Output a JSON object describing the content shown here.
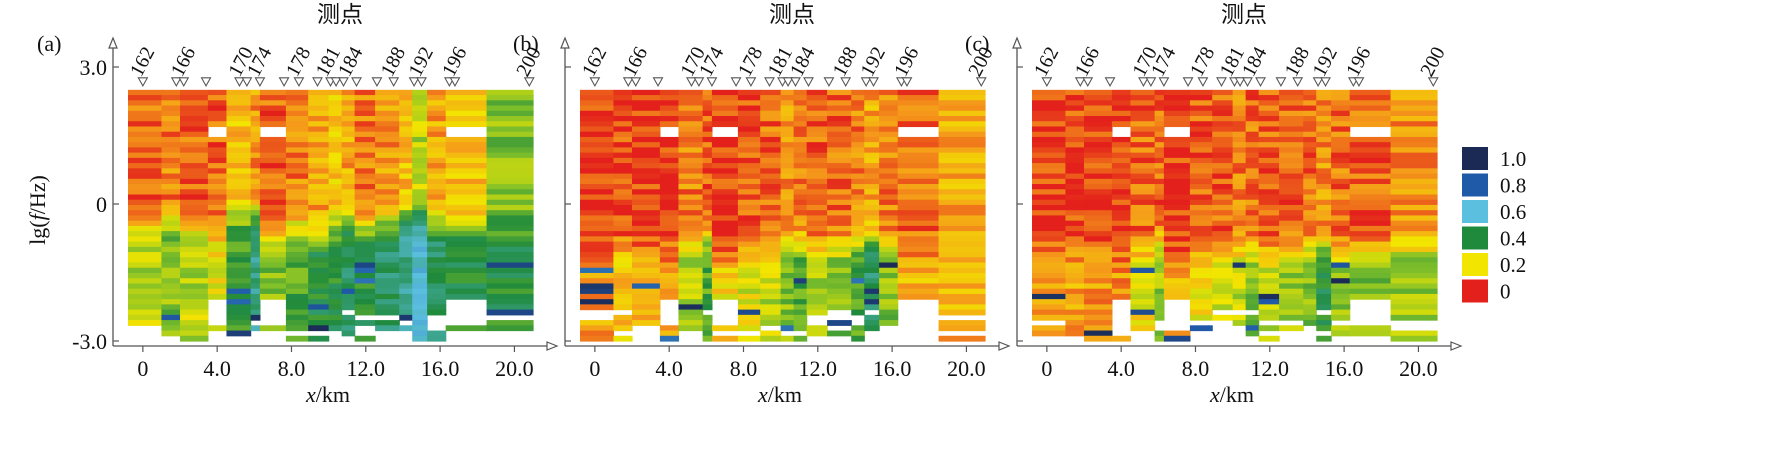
{
  "figure": {
    "ylabel": "lg(f/Hz)",
    "xlabel": "x/km",
    "top_label": "测点"
  },
  "colorbar": {
    "labels": [
      "1.0",
      "0.8",
      "0.6",
      "0.4",
      "0.2",
      "0"
    ],
    "colors": [
      "#1b2a55",
      "#1f5aa8",
      "#5bbfe0",
      "#1f8a3c",
      "#f2e600",
      "#e3201b"
    ],
    "scale": [
      {
        "v": 0.0,
        "c": "#e3201b"
      },
      {
        "v": 0.1,
        "c": "#f59a1a"
      },
      {
        "v": 0.2,
        "c": "#f2e600"
      },
      {
        "v": 0.3,
        "c": "#7fbf2a"
      },
      {
        "v": 0.4,
        "c": "#1f8a3c"
      },
      {
        "v": 0.6,
        "c": "#5bbfe0"
      },
      {
        "v": 0.8,
        "c": "#1f5aa8"
      },
      {
        "v": 1.0,
        "c": "#1b2a55"
      }
    ]
  },
  "chart_data": [
    {
      "panel": "(a)",
      "type": "heatmap",
      "xlabel": "x/km",
      "ylabel": "lg(f/Hz)",
      "top_label": "测点",
      "xlim": [
        -0.8,
        21.0
      ],
      "ylim": [
        -3.0,
        3.0
      ],
      "xticks": [
        0,
        4,
        8,
        12,
        16,
        20
      ],
      "xtick_labels": [
        "0",
        "4.0",
        "8.0",
        "12.0",
        "16.0",
        "20.0"
      ],
      "yticks": [
        3,
        0,
        -3
      ],
      "ytick_labels": [
        "3.0",
        "0",
        "-3.0"
      ],
      "station_labels": [
        "162",
        "166",
        "170",
        "174",
        "178",
        "181",
        "184",
        "188",
        "192",
        "196",
        "200"
      ],
      "station_x": [
        0,
        2.2,
        5.3,
        6.3,
        8.4,
        10.0,
        11.2,
        13.5,
        15.0,
        16.8,
        20.8
      ],
      "marker_x": [
        0,
        1.8,
        2.2,
        3.4,
        5.2,
        5.6,
        6.3,
        7.6,
        8.4,
        9.4,
        10.1,
        10.4,
        10.8,
        11.5,
        12.6,
        13.5,
        14.6,
        15.0,
        16.5,
        16.8,
        20.8
      ],
      "data_top_lg": 2.5,
      "profile": {
        "bounds": [
          -0.8,
          1.0,
          2.0,
          3.5,
          4.5,
          5.8,
          6.3,
          7.7,
          8.9,
          10.0,
          10.7,
          11.4,
          12.5,
          13.8,
          14.5,
          15.3,
          16.3,
          18.5,
          21.0
        ],
        "shallow": [
          0.05,
          0.08,
          0.05,
          0.05,
          0.15,
          0.1,
          0.05,
          0.08,
          0.12,
          0.15,
          0.12,
          0.08,
          0.1,
          0.15,
          0.25,
          0.12,
          0.15,
          0.3
        ],
        "deep": [
          0.25,
          0.3,
          0.25,
          0.2,
          0.35,
          0.5,
          0.3,
          0.35,
          0.4,
          0.4,
          0.45,
          0.4,
          0.45,
          0.5,
          0.6,
          0.45,
          0.4,
          0.4
        ],
        "transition": [
          -0.5,
          -0.3,
          -0.4,
          -0.6,
          -0.2,
          -0.2,
          -0.8,
          -0.5,
          -0.7,
          -0.5,
          -0.4,
          -0.5,
          -0.4,
          -0.3,
          -0.3,
          -0.4,
          -0.5,
          -0.4
        ],
        "gap_bands": [
          [
            -2.6,
            -2.1
          ],
          [
            1.5,
            1.75
          ]
        ],
        "gap_cols": [
          3,
          6,
          16
        ]
      }
    },
    {
      "panel": "(b)",
      "type": "heatmap",
      "xlabel": "x/km",
      "ylabel": "",
      "top_label": "测点",
      "xlim": [
        -0.8,
        21.0
      ],
      "ylim": [
        -3.0,
        3.0
      ],
      "xticks": [
        0,
        4,
        8,
        12,
        16,
        20
      ],
      "xtick_labels": [
        "0",
        "4.0",
        "8.0",
        "12.0",
        "16.0",
        "20.0"
      ],
      "yticks": [
        3,
        0,
        -3
      ],
      "ytick_labels": [
        "",
        "",
        ""
      ],
      "station_labels": [
        "162",
        "166",
        "170",
        "174",
        "178",
        "181",
        "184",
        "188",
        "192",
        "196",
        "200"
      ],
      "station_x": [
        0,
        2.2,
        5.3,
        6.3,
        8.4,
        10.0,
        11.2,
        13.5,
        15.0,
        16.8,
        20.8
      ],
      "marker_x": [
        0,
        1.8,
        2.2,
        3.4,
        5.2,
        5.6,
        6.3,
        7.6,
        8.4,
        9.4,
        10.1,
        10.4,
        10.8,
        11.5,
        12.6,
        13.5,
        14.6,
        15.0,
        16.5,
        16.8,
        20.8
      ],
      "data_top_lg": 2.5,
      "profile": {
        "bounds": [
          -0.8,
          1.0,
          2.0,
          3.5,
          4.5,
          5.8,
          6.3,
          7.7,
          8.9,
          10.0,
          10.7,
          11.4,
          12.5,
          13.8,
          14.5,
          15.3,
          16.3,
          18.5,
          21.0
        ],
        "shallow": [
          0.02,
          0.03,
          0.02,
          0.02,
          0.08,
          0.05,
          0.02,
          0.04,
          0.06,
          0.1,
          0.08,
          0.05,
          0.06,
          0.08,
          0.12,
          0.08,
          0.06,
          0.12
        ],
        "deep": [
          0.12,
          0.15,
          0.12,
          0.1,
          0.25,
          0.35,
          0.18,
          0.22,
          0.25,
          0.3,
          0.35,
          0.28,
          0.3,
          0.35,
          0.45,
          0.3,
          0.15,
          0.12
        ],
        "transition": [
          -1.0,
          -0.9,
          -0.9,
          -1.0,
          -0.8,
          -0.7,
          -1.2,
          -1.0,
          -1.0,
          -0.9,
          -0.9,
          -1.0,
          -0.9,
          -0.8,
          -0.8,
          -0.9,
          -1.2,
          -1.0
        ],
        "gap_bands": [
          [
            -2.6,
            -2.1
          ],
          [
            1.5,
            1.75
          ]
        ],
        "gap_cols": [
          3,
          6,
          16
        ]
      }
    },
    {
      "panel": "(c)",
      "type": "heatmap",
      "xlabel": "x/km",
      "ylabel": "",
      "top_label": "测点",
      "xlim": [
        -0.8,
        21.0
      ],
      "ylim": [
        -3.0,
        3.0
      ],
      "xticks": [
        0,
        4,
        8,
        12,
        16,
        20
      ],
      "xtick_labels": [
        "0",
        "4.0",
        "8.0",
        "12.0",
        "16.0",
        "20.0"
      ],
      "yticks": [
        3,
        0,
        -3
      ],
      "ytick_labels": [
        "",
        "",
        ""
      ],
      "station_labels": [
        "162",
        "166",
        "170",
        "174",
        "178",
        "181",
        "184",
        "188",
        "192",
        "196",
        "200"
      ],
      "station_x": [
        0,
        2.2,
        5.3,
        6.3,
        8.4,
        10.0,
        11.2,
        13.5,
        15.0,
        16.8,
        20.8
      ],
      "marker_x": [
        0,
        1.8,
        2.2,
        3.4,
        5.2,
        5.6,
        6.3,
        7.6,
        8.4,
        9.4,
        10.1,
        10.4,
        10.8,
        11.5,
        12.6,
        13.5,
        14.6,
        15.0,
        16.5,
        16.8,
        20.8
      ],
      "data_top_lg": 2.5,
      "profile": {
        "bounds": [
          -0.8,
          1.0,
          2.0,
          3.5,
          4.5,
          5.8,
          6.3,
          7.7,
          8.9,
          10.0,
          10.7,
          11.4,
          12.5,
          13.8,
          14.5,
          15.3,
          16.3,
          18.5,
          21.0
        ],
        "shallow": [
          0.02,
          0.03,
          0.02,
          0.02,
          0.06,
          0.05,
          0.02,
          0.04,
          0.05,
          0.08,
          0.06,
          0.05,
          0.05,
          0.06,
          0.1,
          0.06,
          0.05,
          0.1
        ],
        "deep": [
          0.1,
          0.12,
          0.1,
          0.1,
          0.2,
          0.28,
          0.15,
          0.2,
          0.22,
          0.25,
          0.3,
          0.25,
          0.28,
          0.3,
          0.4,
          0.28,
          0.3,
          0.28
        ],
        "transition": [
          -1.1,
          -1.0,
          -1.0,
          -1.1,
          -0.9,
          -0.8,
          -1.2,
          -1.1,
          -1.1,
          -1.0,
          -1.0,
          -1.1,
          -1.0,
          -0.9,
          -0.9,
          -1.0,
          -1.0,
          -0.9
        ],
        "gap_bands": [
          [
            -2.6,
            -2.1
          ],
          [
            1.5,
            1.75
          ]
        ],
        "gap_cols": [
          3,
          6,
          16
        ]
      }
    }
  ]
}
